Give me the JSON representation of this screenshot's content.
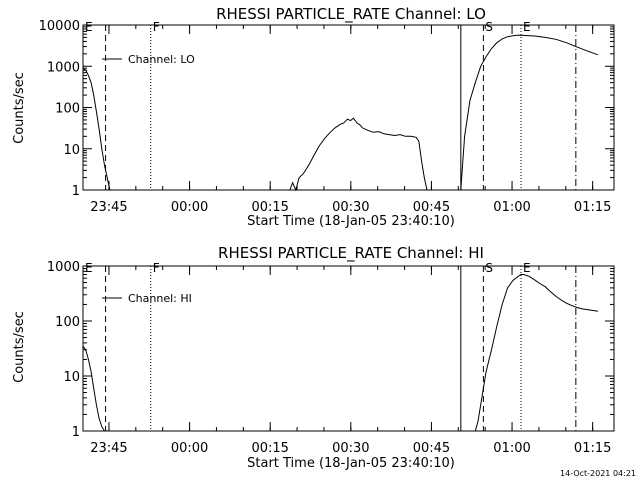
{
  "footer": {
    "timestamp": "14-Oct-2021 04:21"
  },
  "chart_data": [
    {
      "type": "line",
      "title": "RHESSI PARTICLE_RATE Channel: LO",
      "ylabel": "Counts/sec",
      "xlabel": "Start Time (18-Jan-05 23:40:10)",
      "yscale": "log",
      "ylim": [
        1,
        10000
      ],
      "xlim_minutes": [
        0,
        98.8
      ],
      "y_ticks": [
        {
          "v": 1,
          "label": "1"
        },
        {
          "v": 10,
          "label": "10"
        },
        {
          "v": 100,
          "label": "100"
        },
        {
          "v": 1000,
          "label": "1000"
        },
        {
          "v": 10000,
          "label": "10000"
        }
      ],
      "x_ticks": [
        {
          "t": 4.83,
          "label": "23:45"
        },
        {
          "t": 19.83,
          "label": "00:00"
        },
        {
          "t": 34.83,
          "label": "00:15"
        },
        {
          "t": 49.83,
          "label": "00:30"
        },
        {
          "t": 64.83,
          "label": "00:45"
        },
        {
          "t": 79.83,
          "label": "01:00"
        },
        {
          "t": 94.83,
          "label": "01:15"
        }
      ],
      "legend": {
        "label": "Channel: LO",
        "position": "top-left"
      },
      "markers": [
        {
          "label": "E",
          "t": 0,
          "style": "dotted"
        },
        {
          "label": "",
          "t": 4.2,
          "style": "dashed"
        },
        {
          "label": "F",
          "t": 12.6,
          "style": "dotted"
        },
        {
          "label": "",
          "t": 70.3,
          "style": "solid"
        },
        {
          "label": "S",
          "t": 74.5,
          "style": "dashed"
        },
        {
          "label": "E",
          "t": 81.5,
          "style": "dotted"
        },
        {
          "label": "",
          "t": 91.7,
          "style": "dashdot"
        }
      ],
      "series": [
        {
          "segments": [
            [
              [
                0,
                900
              ],
              [
                0.5,
                800
              ],
              [
                1,
                600
              ],
              [
                1.5,
                400
              ],
              [
                2,
                200
              ],
              [
                2.5,
                80
              ],
              [
                3,
                30
              ],
              [
                3.5,
                10
              ],
              [
                4,
                4
              ],
              [
                4.5,
                2
              ],
              [
                5,
                1
              ]
            ],
            [
              [
                38.5,
                1
              ],
              [
                39,
                1.5
              ],
              [
                39.6,
                1
              ],
              [
                40.2,
                2
              ],
              [
                41,
                2.5
              ],
              [
                42,
                4
              ],
              [
                43,
                7
              ],
              [
                44,
                12
              ],
              [
                45,
                18
              ],
              [
                46,
                25
              ],
              [
                47,
                33
              ],
              [
                48,
                40
              ],
              [
                48.5,
                42
              ],
              [
                49.2,
                52
              ],
              [
                49.8,
                48
              ],
              [
                50.3,
                55
              ],
              [
                51,
                42
              ],
              [
                51.5,
                38
              ],
              [
                52,
                32
              ],
              [
                53,
                28
              ],
              [
                54,
                25
              ],
              [
                55,
                26
              ],
              [
                56,
                23
              ],
              [
                57,
                22
              ],
              [
                58,
                21
              ],
              [
                59,
                22
              ],
              [
                60,
                20
              ],
              [
                61,
                20
              ],
              [
                62,
                19
              ],
              [
                62.5,
                15
              ],
              [
                63,
                5
              ],
              [
                63.5,
                2
              ],
              [
                64,
                1
              ]
            ],
            [
              [
                70.3,
                1
              ],
              [
                71,
                20
              ],
              [
                72,
                150
              ],
              [
                73,
                400
              ],
              [
                74,
                1000
              ],
              [
                75,
                1700
              ],
              [
                76,
                2700
              ],
              [
                77,
                3700
              ],
              [
                78,
                4600
              ],
              [
                79,
                5200
              ],
              [
                80,
                5500
              ],
              [
                81,
                5700
              ],
              [
                82,
                5600
              ],
              [
                84,
                5400
              ],
              [
                86,
                5000
              ],
              [
                88,
                4500
              ],
              [
                90,
                3700
              ],
              [
                92,
                2900
              ],
              [
                94,
                2300
              ],
              [
                95.8,
                1900
              ]
            ]
          ]
        }
      ]
    },
    {
      "type": "line",
      "title": "RHESSI PARTICLE_RATE Channel: HI",
      "ylabel": "Counts/sec",
      "xlabel": "Start Time (18-Jan-05 23:40:10)",
      "yscale": "log",
      "ylim": [
        1,
        1000
      ],
      "xlim_minutes": [
        0,
        98.8
      ],
      "y_ticks": [
        {
          "v": 1,
          "label": "1"
        },
        {
          "v": 10,
          "label": "10"
        },
        {
          "v": 100,
          "label": "100"
        },
        {
          "v": 1000,
          "label": "1000"
        }
      ],
      "x_ticks": [
        {
          "t": 4.83,
          "label": "23:45"
        },
        {
          "t": 19.83,
          "label": "00:00"
        },
        {
          "t": 34.83,
          "label": "00:15"
        },
        {
          "t": 49.83,
          "label": "00:30"
        },
        {
          "t": 64.83,
          "label": "00:45"
        },
        {
          "t": 79.83,
          "label": "01:00"
        },
        {
          "t": 94.83,
          "label": "01:15"
        }
      ],
      "legend": {
        "label": "Channel: HI",
        "position": "top-left"
      },
      "markers": [
        {
          "label": "E",
          "t": 0,
          "style": "dotted"
        },
        {
          "label": "",
          "t": 4.2,
          "style": "dashed"
        },
        {
          "label": "F",
          "t": 12.6,
          "style": "dotted"
        },
        {
          "label": "",
          "t": 70.3,
          "style": "solid"
        },
        {
          "label": "S",
          "t": 74.5,
          "style": "dashed"
        },
        {
          "label": "E",
          "t": 81.5,
          "style": "dotted"
        },
        {
          "label": "",
          "t": 91.7,
          "style": "dashdot"
        }
      ],
      "series": [
        {
          "segments": [
            [
              [
                0,
                35
              ],
              [
                0.5,
                30
              ],
              [
                1,
                20
              ],
              [
                1.5,
                12
              ],
              [
                2,
                6
              ],
              [
                2.5,
                3
              ],
              [
                3,
                1.7
              ],
              [
                3.5,
                1.2
              ],
              [
                4,
                1
              ]
            ],
            [
              [
                73,
                1
              ],
              [
                73.5,
                1.5
              ],
              [
                74,
                3
              ],
              [
                74.5,
                6
              ],
              [
                75,
                12
              ],
              [
                76,
                30
              ],
              [
                77,
                80
              ],
              [
                78,
                200
              ],
              [
                79,
                400
              ],
              [
                80,
                550
              ],
              [
                81,
                650
              ],
              [
                81.5,
                700
              ],
              [
                82,
                700
              ],
              [
                83,
                650
              ],
              [
                84,
                560
              ],
              [
                85,
                480
              ],
              [
                86,
                420
              ],
              [
                87,
                340
              ],
              [
                88,
                280
              ],
              [
                89,
                240
              ],
              [
                90,
                210
              ],
              [
                91,
                190
              ],
              [
                92,
                175
              ],
              [
                93,
                165
              ],
              [
                94,
                160
              ],
              [
                95.8,
                150
              ]
            ]
          ]
        }
      ]
    }
  ]
}
